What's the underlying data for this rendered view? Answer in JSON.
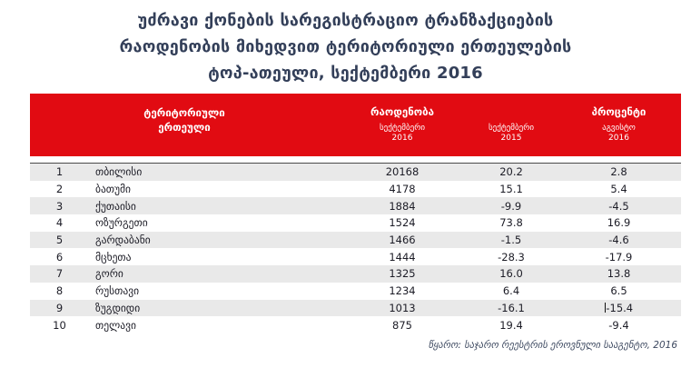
{
  "title": {
    "line1": "უძრავი ქონების სარეგისტრაციო ტრანზაქციების",
    "line2": "რაოდენობის მიხედვით ტერიტორიული ერთეულების",
    "line3": "ტოპ-ათეული, სექტემბერი 2016"
  },
  "colors": {
    "header_red": "#e10b12",
    "title_text": "#333f59",
    "row_alt_gray": "#e9e9e9",
    "body_text": "#1c1c26"
  },
  "table": {
    "header": {
      "territory_label_line1": "ტერიტორიული",
      "territory_label_line2": "ერთეული",
      "count_group_label": "რაოდენობა",
      "percent_group_label": "პროცენტი",
      "col_sep2016_line1": "სექტემბერი",
      "col_sep2016_line2": "2016",
      "col_sep2015_line1": "სექტემბერი",
      "col_sep2015_line2": "2015",
      "col_aug2016_line1": "აგვისტო",
      "col_aug2016_line2": "2016"
    },
    "rows": [
      {
        "rank": "1",
        "territory": "თბილისი",
        "count_sep2016": "20168",
        "pct_sep2015": "20.2",
        "pct_aug2016": "2.8"
      },
      {
        "rank": "2",
        "territory": "ბათუმი",
        "count_sep2016": "4178",
        "pct_sep2015": "15.1",
        "pct_aug2016": "5.4"
      },
      {
        "rank": "3",
        "territory": "ქუთაისი",
        "count_sep2016": "1884",
        "pct_sep2015": "-9.9",
        "pct_aug2016": "-4.5"
      },
      {
        "rank": "4",
        "territory": "ოზურგეთი",
        "count_sep2016": "1524",
        "pct_sep2015": "73.8",
        "pct_aug2016": "16.9"
      },
      {
        "rank": "5",
        "territory": "გარდაბანი",
        "count_sep2016": "1466",
        "pct_sep2015": "-1.5",
        "pct_aug2016": "-4.6"
      },
      {
        "rank": "6",
        "territory": "მცხეთა",
        "count_sep2016": "1444",
        "pct_sep2015": "-28.3",
        "pct_aug2016": "-17.9"
      },
      {
        "rank": "7",
        "territory": "გორი",
        "count_sep2016": "1325",
        "pct_sep2015": "16.0",
        "pct_aug2016": "13.8"
      },
      {
        "rank": "8",
        "territory": "რუსთავი",
        "count_sep2016": "1234",
        "pct_sep2015": "6.4",
        "pct_aug2016": "6.5"
      },
      {
        "rank": "9",
        "territory": "ზუგდიდი",
        "count_sep2016": "1013",
        "pct_sep2015": "-16.1",
        "pct_aug2016": "-15.4",
        "text_cursor": true
      },
      {
        "rank": "10",
        "territory": "თელავი",
        "count_sep2016": "875",
        "pct_sep2015": "19.4",
        "pct_aug2016": "-9.4"
      }
    ]
  },
  "footer": {
    "source": "წყარო: საჯარო რეესტრის ეროვნული სააგენტო, 2016"
  },
  "chart_data": {
    "type": "table",
    "title": "უძრავი ქონების სარეგისტრაციო ტრანზაქციების რაოდენობის მიხედვით ტერიტორიული ერთეულების ტოპ-ათეული, სექტემბერი 2016",
    "columns": [
      "",
      "ტერიტორიული ერთეული",
      "რაოდენობა — სექტემბერი 2016",
      "სექტემბერი 2015",
      "პროცენტი — აგვისტო 2016"
    ],
    "rows": [
      [
        1,
        "თბილისი",
        20168,
        20.2,
        2.8
      ],
      [
        2,
        "ბათუმი",
        4178,
        15.1,
        5.4
      ],
      [
        3,
        "ქუთაისი",
        1884,
        -9.9,
        -4.5
      ],
      [
        4,
        "ოზურგეთი",
        1524,
        73.8,
        16.9
      ],
      [
        5,
        "გარდაბანი",
        1466,
        -1.5,
        -4.6
      ],
      [
        6,
        "მცხეთა",
        1444,
        -28.3,
        -17.9
      ],
      [
        7,
        "გორი",
        1325,
        16.0,
        13.8
      ],
      [
        8,
        "რუსთავი",
        1234,
        6.4,
        6.5
      ],
      [
        9,
        "ზუგდიდი",
        1013,
        -16.1,
        -15.4
      ],
      [
        10,
        "თელავი",
        875,
        19.4,
        -9.4
      ]
    ],
    "source": "წყარო: საჯარო რეესტრის ეროვნული სააგენტო, 2016"
  }
}
